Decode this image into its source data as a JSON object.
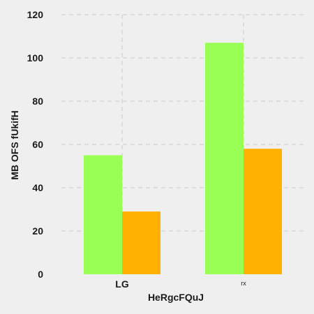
{
  "chart_data": {
    "type": "bar",
    "title": "",
    "xlabel": "HeRgcFQuJ",
    "ylabel": "MB OFS fUkifH",
    "categories": [
      "LG",
      "rx"
    ],
    "series": [
      {
        "values": [
          55,
          107
        ],
        "color": "#99ff55"
      },
      {
        "values": [
          29,
          58
        ],
        "color": "#ffb000"
      }
    ],
    "ylim": [
      0,
      120
    ],
    "yticks": [
      "0",
      "20",
      "40",
      "60",
      "80",
      "100",
      "120"
    ],
    "grid": true,
    "legend": "none",
    "background": "#efefef"
  }
}
